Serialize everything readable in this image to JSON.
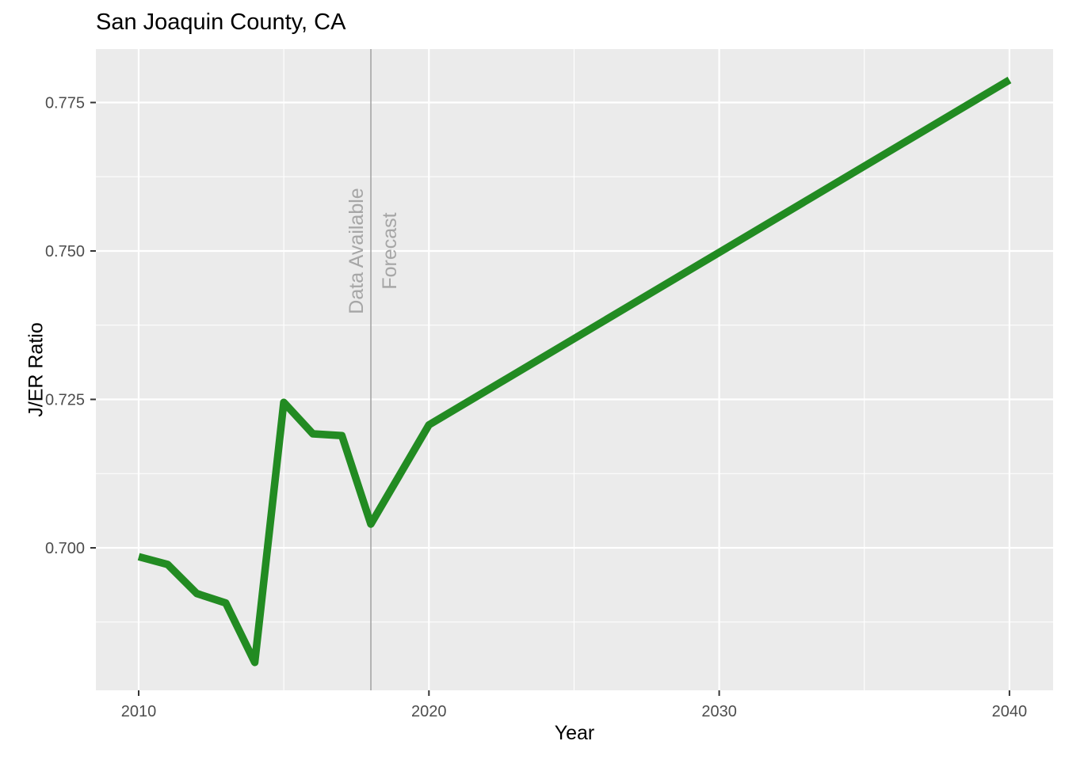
{
  "chart_data": {
    "type": "line",
    "title": "San Joaquin County, CA",
    "xlabel": "Year",
    "ylabel": "J/ER Ratio",
    "x_ticks": [
      2010,
      2020,
      2030,
      2040
    ],
    "x_tick_labels": [
      "2010",
      "2020",
      "2030",
      "2040"
    ],
    "y_ticks": [
      0.7,
      0.725,
      0.75,
      0.775
    ],
    "y_tick_labels": [
      "0.700",
      "0.725",
      "0.750",
      "0.775"
    ],
    "xlim": [
      2008.5,
      2041.5
    ],
    "ylim": [
      0.676,
      0.784
    ],
    "grid": true,
    "legend": "none",
    "series": [
      {
        "name": "J/ER Ratio",
        "color": "#228B22",
        "x": [
          2010,
          2011,
          2012,
          2013,
          2014,
          2015,
          2016,
          2017,
          2018,
          2020,
          2040
        ],
        "values": [
          0.6985,
          0.6972,
          0.6923,
          0.6907,
          0.6807,
          0.7245,
          0.7192,
          0.7189,
          0.704,
          0.7207,
          0.7788
        ]
      }
    ],
    "annotations": {
      "vline": {
        "x": 2018,
        "color": "#A6A6A6"
      },
      "left_text": "Data Available",
      "right_text": "Forecast",
      "text_color": "#A6A6A6",
      "text_y": 0.75
    }
  },
  "colors": {
    "panel_bg": "#EBEBEB",
    "grid": "#FFFFFF",
    "tick_text": "#4D4D4D"
  }
}
